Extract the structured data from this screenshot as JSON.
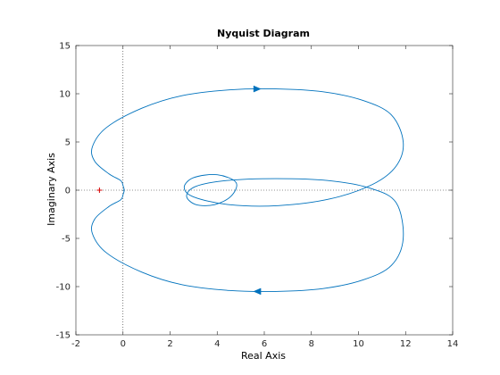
{
  "chart_data": {
    "type": "line",
    "title": "Nyquist Diagram",
    "xlabel": "Real Axis",
    "ylabel": "Imaginary Axis",
    "xlim": [
      -2,
      14
    ],
    "ylim": [
      -15,
      15
    ],
    "xticks": [
      -2,
      0,
      2,
      4,
      6,
      8,
      10,
      12,
      14
    ],
    "yticks": [
      -15,
      -10,
      -5,
      0,
      5,
      10,
      15
    ],
    "grid": false,
    "zero_lines": "dotted",
    "critical_point": {
      "x": -1,
      "y": 0,
      "marker": "+"
    },
    "series": [
      {
        "color": "#0072bd",
        "x": [
          0,
          0.05,
          0.01,
          -0.1,
          -0.6,
          -1.2,
          -1.3,
          -0.7,
          0.8,
          2.5,
          4.5,
          6.5,
          8.5,
          10.2,
          11.4,
          11.9,
          11.6,
          10.6,
          8.8,
          6.6,
          4.5,
          3.0,
          2.6,
          3.0,
          4.0,
          4.8,
          4.6,
          3.9,
          3.1,
          2.7,
          3.1,
          4.4,
          6.5,
          8.7,
          10.5,
          11.6,
          11.9,
          11.4,
          10.2,
          8.5,
          6.5,
          4.5,
          2.5,
          0.8,
          -0.7,
          -1.3,
          -1.2,
          -0.6,
          -0.1,
          0.01,
          0.05,
          0
        ],
        "y": [
          0,
          0.05,
          0.4,
          1.0,
          1.7,
          3.0,
          4.5,
          6.5,
          8.5,
          9.8,
          10.4,
          10.5,
          10.2,
          9.3,
          7.8,
          5.0,
          2.5,
          0.6,
          -0.9,
          -1.6,
          -1.5,
          -0.7,
          0.3,
          1.3,
          1.6,
          0.8,
          -0.6,
          -1.5,
          -1.5,
          -0.6,
          0.4,
          1.0,
          1.2,
          1.0,
          0.2,
          -1.3,
          -5.0,
          -7.8,
          -9.3,
          -10.2,
          -10.5,
          -10.4,
          -9.8,
          -8.5,
          -6.5,
          -4.5,
          -3.0,
          -1.7,
          -1.0,
          -0.4,
          -0.05,
          0
        ],
        "arrows": [
          {
            "x": 5.7,
            "y": 10.5,
            "direction": "right"
          },
          {
            "x": 5.7,
            "y": -10.5,
            "direction": "left"
          }
        ]
      }
    ]
  }
}
